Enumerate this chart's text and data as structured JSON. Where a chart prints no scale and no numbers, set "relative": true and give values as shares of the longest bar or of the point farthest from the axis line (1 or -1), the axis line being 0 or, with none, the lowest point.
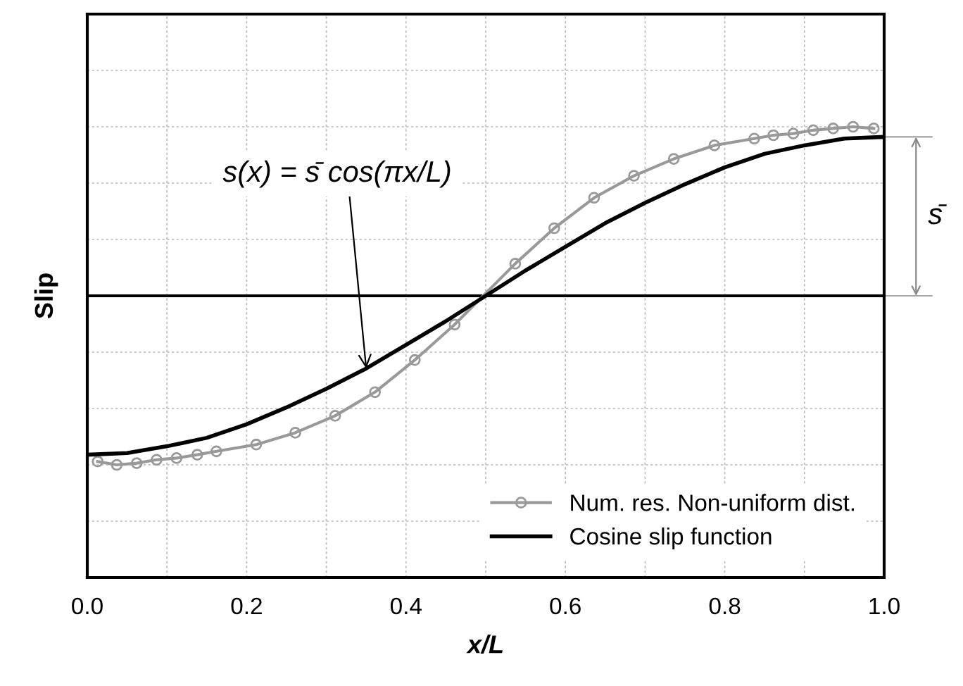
{
  "chart_data": {
    "type": "line",
    "relative": true,
    "xlabel": "x/L",
    "ylabel": "Slip",
    "xlim": [
      0,
      1
    ],
    "xticks": [
      {
        "value": 0,
        "label": "0.0"
      },
      {
        "value": 0.1,
        "label": null
      },
      {
        "value": 0.2,
        "label": "0.2"
      },
      {
        "value": 0.3,
        "label": null
      },
      {
        "value": 0.4,
        "label": "0.4"
      },
      {
        "value": 0.5,
        "label": null
      },
      {
        "value": 0.6,
        "label": "0.6"
      },
      {
        "value": 0.7,
        "label": null
      },
      {
        "value": 0.8,
        "label": "0.8"
      },
      {
        "value": 0.9,
        "label": null
      },
      {
        "value": 1,
        "label": "1.0"
      }
    ],
    "grid": true,
    "legend": "bottom right",
    "tick_labels": "x",
    "series": [
      {
        "name": "Num. res. Non-uniform dist.",
        "color": "#999999",
        "marker": "circle",
        "x": [
          0.013,
          0.037,
          0.062,
          0.087,
          0.112,
          0.138,
          0.162,
          0.212,
          0.261,
          0.311,
          0.361,
          0.411,
          0.461,
          0.537,
          0.586,
          0.636,
          0.686,
          0.736,
          0.787,
          0.837,
          0.861,
          0.886,
          0.911,
          0.936,
          0.961,
          0.987
        ],
        "values": [
          -0.98,
          -1.0,
          -0.99,
          -0.97,
          -0.96,
          -0.94,
          -0.92,
          -0.88,
          -0.81,
          -0.71,
          -0.57,
          -0.38,
          -0.17,
          0.19,
          0.4,
          0.58,
          0.71,
          0.81,
          0.89,
          0.93,
          0.95,
          0.96,
          0.98,
          0.99,
          1.0,
          0.99
        ]
      },
      {
        "name": "Cosine slip function",
        "color": "#000000",
        "marker": "none",
        "x": [
          0,
          0.05,
          0.1,
          0.15,
          0.2,
          0.25,
          0.3,
          0.35,
          0.4,
          0.45,
          0.5,
          0.55,
          0.6,
          0.65,
          0.7,
          0.75,
          0.8,
          0.85,
          0.9,
          0.95,
          1.0
        ],
        "values": [
          -0.94,
          -0.93,
          -0.89,
          -0.84,
          -0.76,
          -0.66,
          -0.55,
          -0.43,
          -0.29,
          -0.15,
          0,
          0.15,
          0.29,
          0.43,
          0.55,
          0.66,
          0.76,
          0.84,
          0.89,
          0.93,
          0.94
        ]
      }
    ],
    "annotations": [
      {
        "text": "s(x) = s̄ cos(πx/L)",
        "x": 0.35,
        "y": -0.43
      },
      {
        "text": "s̄",
        "x": 1.0,
        "y": 0.94
      }
    ]
  }
}
